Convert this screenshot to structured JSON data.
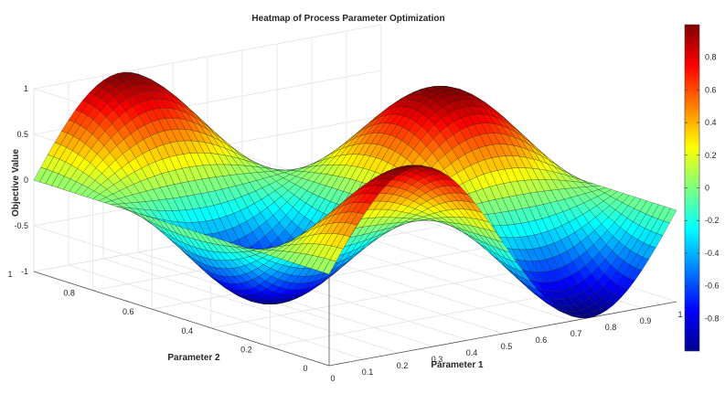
{
  "chart_data": {
    "type": "surface",
    "title": "Heatmap of Process Parameter Optimization",
    "xlabel": "Parameter 1",
    "ylabel": "Parameter 2",
    "zlabel": "Objective Value",
    "xlim": [
      0,
      1
    ],
    "ylim": [
      0,
      1
    ],
    "zlim": [
      -1,
      1
    ],
    "x_ticks": [
      "0",
      "0.1",
      "0.2",
      "0.3",
      "0.4",
      "0.5",
      "0.6",
      "0.7",
      "0.8",
      "0.9",
      "1"
    ],
    "y_ticks": [
      "0",
      "0.2",
      "0.4",
      "0.6",
      "0.8",
      "1"
    ],
    "z_ticks": [
      "-1",
      "-0.5",
      "0",
      "0.5",
      "1"
    ],
    "function": "z = sin(2*pi*x) * cos(2*pi*y)",
    "grid_resolution": 51,
    "grid": true,
    "colormap": "jet",
    "colorbar": {
      "range": [
        -1,
        1
      ],
      "ticks": [
        "-0.8",
        "-0.6",
        "-0.4",
        "-0.2",
        "0",
        "0.2",
        "0.4",
        "0.6",
        "0.8"
      ],
      "placement": "right"
    }
  }
}
